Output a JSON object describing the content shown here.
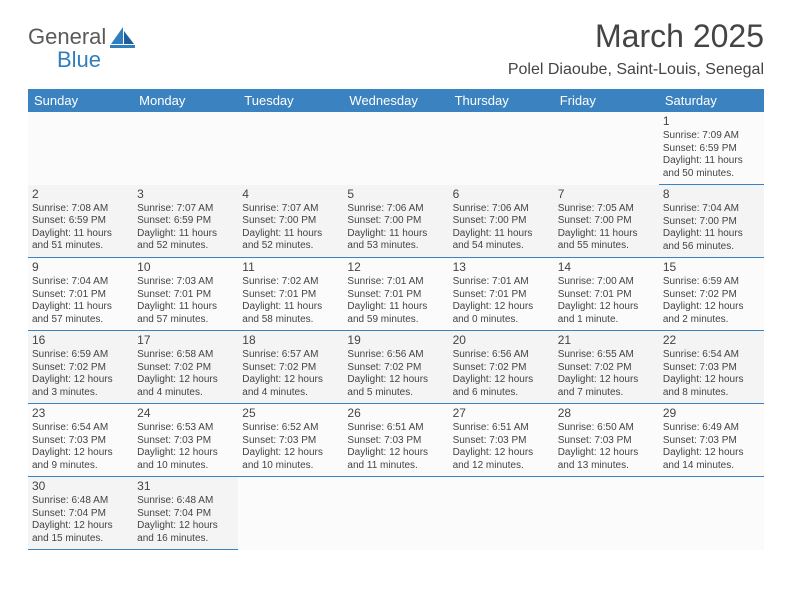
{
  "logo": {
    "word1": "General",
    "word2": "Blue",
    "text_color": "#5a5a5a",
    "accent_color": "#2f7fbf"
  },
  "title": "March 2025",
  "location": "Polel Diaoube, Saint-Louis, Senegal",
  "header_bg": "#3b83c0",
  "header_text_color": "#ffffff",
  "day_border_color": "#3b83c0",
  "text_color": "#444444",
  "days_of_week": [
    "Sunday",
    "Monday",
    "Tuesday",
    "Wednesday",
    "Thursday",
    "Friday",
    "Saturday"
  ],
  "weeks": [
    [
      null,
      null,
      null,
      null,
      null,
      null,
      {
        "n": "1",
        "sunrise": "7:09 AM",
        "sunset": "6:59 PM",
        "daylight": "11 hours and 50 minutes."
      }
    ],
    [
      {
        "n": "2",
        "sunrise": "7:08 AM",
        "sunset": "6:59 PM",
        "daylight": "11 hours and 51 minutes."
      },
      {
        "n": "3",
        "sunrise": "7:07 AM",
        "sunset": "6:59 PM",
        "daylight": "11 hours and 52 minutes."
      },
      {
        "n": "4",
        "sunrise": "7:07 AM",
        "sunset": "7:00 PM",
        "daylight": "11 hours and 52 minutes."
      },
      {
        "n": "5",
        "sunrise": "7:06 AM",
        "sunset": "7:00 PM",
        "daylight": "11 hours and 53 minutes."
      },
      {
        "n": "6",
        "sunrise": "7:06 AM",
        "sunset": "7:00 PM",
        "daylight": "11 hours and 54 minutes."
      },
      {
        "n": "7",
        "sunrise": "7:05 AM",
        "sunset": "7:00 PM",
        "daylight": "11 hours and 55 minutes."
      },
      {
        "n": "8",
        "sunrise": "7:04 AM",
        "sunset": "7:00 PM",
        "daylight": "11 hours and 56 minutes."
      }
    ],
    [
      {
        "n": "9",
        "sunrise": "7:04 AM",
        "sunset": "7:01 PM",
        "daylight": "11 hours and 57 minutes."
      },
      {
        "n": "10",
        "sunrise": "7:03 AM",
        "sunset": "7:01 PM",
        "daylight": "11 hours and 57 minutes."
      },
      {
        "n": "11",
        "sunrise": "7:02 AM",
        "sunset": "7:01 PM",
        "daylight": "11 hours and 58 minutes."
      },
      {
        "n": "12",
        "sunrise": "7:01 AM",
        "sunset": "7:01 PM",
        "daylight": "11 hours and 59 minutes."
      },
      {
        "n": "13",
        "sunrise": "7:01 AM",
        "sunset": "7:01 PM",
        "daylight": "12 hours and 0 minutes."
      },
      {
        "n": "14",
        "sunrise": "7:00 AM",
        "sunset": "7:01 PM",
        "daylight": "12 hours and 1 minute."
      },
      {
        "n": "15",
        "sunrise": "6:59 AM",
        "sunset": "7:02 PM",
        "daylight": "12 hours and 2 minutes."
      }
    ],
    [
      {
        "n": "16",
        "sunrise": "6:59 AM",
        "sunset": "7:02 PM",
        "daylight": "12 hours and 3 minutes."
      },
      {
        "n": "17",
        "sunrise": "6:58 AM",
        "sunset": "7:02 PM",
        "daylight": "12 hours and 4 minutes."
      },
      {
        "n": "18",
        "sunrise": "6:57 AM",
        "sunset": "7:02 PM",
        "daylight": "12 hours and 4 minutes."
      },
      {
        "n": "19",
        "sunrise": "6:56 AM",
        "sunset": "7:02 PM",
        "daylight": "12 hours and 5 minutes."
      },
      {
        "n": "20",
        "sunrise": "6:56 AM",
        "sunset": "7:02 PM",
        "daylight": "12 hours and 6 minutes."
      },
      {
        "n": "21",
        "sunrise": "6:55 AM",
        "sunset": "7:02 PM",
        "daylight": "12 hours and 7 minutes."
      },
      {
        "n": "22",
        "sunrise": "6:54 AM",
        "sunset": "7:03 PM",
        "daylight": "12 hours and 8 minutes."
      }
    ],
    [
      {
        "n": "23",
        "sunrise": "6:54 AM",
        "sunset": "7:03 PM",
        "daylight": "12 hours and 9 minutes."
      },
      {
        "n": "24",
        "sunrise": "6:53 AM",
        "sunset": "7:03 PM",
        "daylight": "12 hours and 10 minutes."
      },
      {
        "n": "25",
        "sunrise": "6:52 AM",
        "sunset": "7:03 PM",
        "daylight": "12 hours and 10 minutes."
      },
      {
        "n": "26",
        "sunrise": "6:51 AM",
        "sunset": "7:03 PM",
        "daylight": "12 hours and 11 minutes."
      },
      {
        "n": "27",
        "sunrise": "6:51 AM",
        "sunset": "7:03 PM",
        "daylight": "12 hours and 12 minutes."
      },
      {
        "n": "28",
        "sunrise": "6:50 AM",
        "sunset": "7:03 PM",
        "daylight": "12 hours and 13 minutes."
      },
      {
        "n": "29",
        "sunrise": "6:49 AM",
        "sunset": "7:03 PM",
        "daylight": "12 hours and 14 minutes."
      }
    ],
    [
      {
        "n": "30",
        "sunrise": "6:48 AM",
        "sunset": "7:04 PM",
        "daylight": "12 hours and 15 minutes."
      },
      {
        "n": "31",
        "sunrise": "6:48 AM",
        "sunset": "7:04 PM",
        "daylight": "12 hours and 16 minutes."
      },
      null,
      null,
      null,
      null,
      null
    ]
  ],
  "labels": {
    "sunrise": "Sunrise: ",
    "sunset": "Sunset: ",
    "daylight": "Daylight: "
  }
}
